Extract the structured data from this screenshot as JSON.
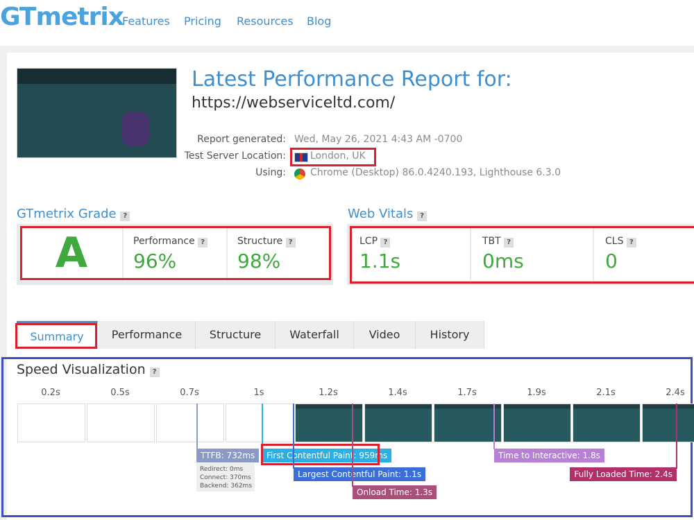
{
  "nav": {
    "logo": "GTmetrix",
    "links": [
      "Features",
      "Pricing",
      "Resources",
      "Blog"
    ]
  },
  "report": {
    "title": "Latest Performance Report for:",
    "url": "https://webserviceltd.com/",
    "meta": [
      {
        "label": "Report generated:",
        "value": "Wed, May 26, 2021 4:43 AM -0700"
      },
      {
        "label": "Test Server Location:",
        "value": "London, UK"
      },
      {
        "label": "Using:",
        "value": "Chrome (Desktop) 86.0.4240.193, Lighthouse 6.3.0"
      }
    ]
  },
  "help": "?",
  "grade": {
    "title": "GTmetrix Grade",
    "letter": "A",
    "metrics": [
      {
        "label": "Performance",
        "value": "96%"
      },
      {
        "label": "Structure",
        "value": "98%"
      }
    ]
  },
  "vitals": {
    "title": "Web Vitals",
    "metrics": [
      {
        "label": "LCP",
        "value": "1.1s"
      },
      {
        "label": "TBT",
        "value": "0ms"
      },
      {
        "label": "CLS",
        "value": "0"
      }
    ]
  },
  "tabs": [
    "Summary",
    "Performance",
    "Structure",
    "Waterfall",
    "Video",
    "History"
  ],
  "speed": {
    "title": "Speed Visualization",
    "frames": [
      "0.2s",
      "0.5s",
      "0.7s",
      "1s",
      "1.2s",
      "1.4s",
      "1.7s",
      "1.9s",
      "2.1s",
      "2.4s"
    ],
    "markers": [
      "TTFB: 732ms",
      "First Contentful Paint: 959ms",
      "Largest Contentful Paint: 1.1s",
      "Onload Time: 1.3s",
      "Time to Interactive: 1.8s",
      "Fully Loaded Time: 2.4s"
    ],
    "ttfb_details": [
      "Redirect: 0ms",
      "Connect: 370ms",
      "Backend: 362ms"
    ]
  }
}
